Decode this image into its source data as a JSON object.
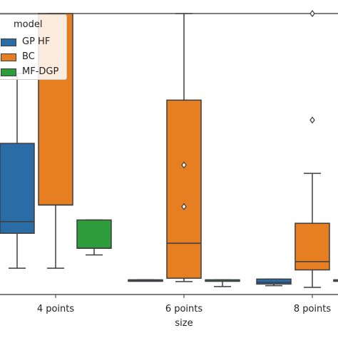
{
  "chart_data": {
    "type": "box",
    "xlabel": "size",
    "ylabel": "",
    "categories": [
      "4 points",
      "6 points",
      "8 points"
    ],
    "legend": {
      "title": "model",
      "placement": "upper-left",
      "entries": [
        "GP HF",
        "BC",
        "MF-DGP"
      ]
    },
    "series": [
      {
        "name": "GP HF",
        "color": "#2a6ca6",
        "boxes": [
          {
            "category": "4 points",
            "whislo": 0.07,
            "q1": 0.28,
            "med": 0.35,
            "q3": 0.82,
            "whishi": 1.24,
            "fliers": []
          },
          {
            "category": "6 points",
            "whislo": 0.0,
            "q1": 0.0,
            "med": 0.0,
            "q3": 0.0,
            "whishi": 0.0,
            "fliers": []
          },
          {
            "category": "8 points",
            "whislo": -0.035,
            "q1": -0.025,
            "med": -0.015,
            "q3": 0.005,
            "whishi": 0.005,
            "fliers": []
          }
        ]
      },
      {
        "name": "BC",
        "color": "#e67e22",
        "boxes": [
          {
            "category": "4 points",
            "whislo": 0.07,
            "q1": 0.45,
            "med": 0.45,
            "q3": 1.6,
            "whishi": 1.6,
            "fliers": []
          },
          {
            "category": "6 points",
            "whislo": -0.01,
            "q1": 0.01,
            "med": 0.22,
            "q3": 1.08,
            "whishi": 1.6,
            "fliers": [
              0.69,
              0.44
            ]
          },
          {
            "category": "8 points",
            "whislo": -0.045,
            "q1": 0.06,
            "med": 0.11,
            "q3": 0.34,
            "whishi": 0.64,
            "fliers": [
              1.6,
              0.96
            ]
          }
        ]
      },
      {
        "name": "MF-DGP",
        "color": "#2e9c3b",
        "boxes": [
          {
            "category": "4 points",
            "whislo": 0.15,
            "q1": 0.19,
            "med": 0.19,
            "q3": 0.36,
            "whishi": 0.36,
            "fliers": []
          },
          {
            "category": "6 points",
            "whislo": -0.04,
            "q1": 0.0,
            "med": 0.0,
            "q3": 0.0,
            "whishi": 0.0,
            "fliers": []
          },
          {
            "category": "8 points",
            "whislo": 0.0,
            "q1": 0.0,
            "med": 0.0,
            "q3": 0.0,
            "whishi": 0.0,
            "fliers": []
          }
        ]
      }
    ]
  }
}
